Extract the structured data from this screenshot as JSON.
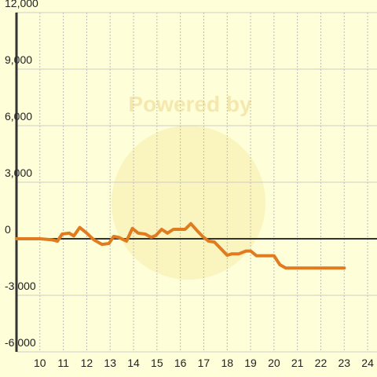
{
  "chart_data": {
    "type": "line",
    "watermark": "Powered by",
    "x": [
      9,
      10,
      10.5,
      10.75,
      10.95,
      11.25,
      11.45,
      11.7,
      12,
      12.3,
      12.65,
      12.95,
      13.15,
      13.35,
      13.7,
      13.95,
      14.2,
      14.5,
      14.75,
      14.95,
      15.2,
      15.45,
      15.7,
      16.2,
      16.45,
      16.7,
      16.95,
      17.2,
      17.45,
      17.75,
      18,
      18.2,
      18.5,
      18.8,
      19,
      19.25,
      19.85,
      20,
      20.25,
      20.5,
      23
    ],
    "values": [
      0,
      0,
      -50,
      -125,
      250,
      300,
      150,
      600,
      300,
      -50,
      -300,
      -250,
      125,
      80,
      -125,
      550,
      300,
      250,
      80,
      170,
      500,
      300,
      500,
      500,
      800,
      450,
      125,
      -125,
      -170,
      -550,
      -875,
      -800,
      -800,
      -650,
      -650,
      -900,
      -900,
      -900,
      -1375,
      -1550,
      -1550
    ],
    "color": "#e07b20",
    "xlim": [
      9,
      24.4
    ],
    "xticks": [
      10,
      11,
      12,
      13,
      14,
      15,
      16,
      17,
      18,
      19,
      20,
      21,
      22,
      23,
      24
    ],
    "ylim": [
      -6000,
      12000
    ],
    "yticks": [
      {
        "value": -6000,
        "label": "-6,000"
      },
      {
        "value": -3000,
        "label": "-3,000"
      },
      0,
      {
        "value": 3000,
        "label": "3,000"
      },
      {
        "value": 6000,
        "label": "6,000"
      },
      {
        "value": 9000,
        "label": "9,000"
      },
      {
        "value": 12000,
        "label": "12,000"
      }
    ],
    "grid": true
  }
}
